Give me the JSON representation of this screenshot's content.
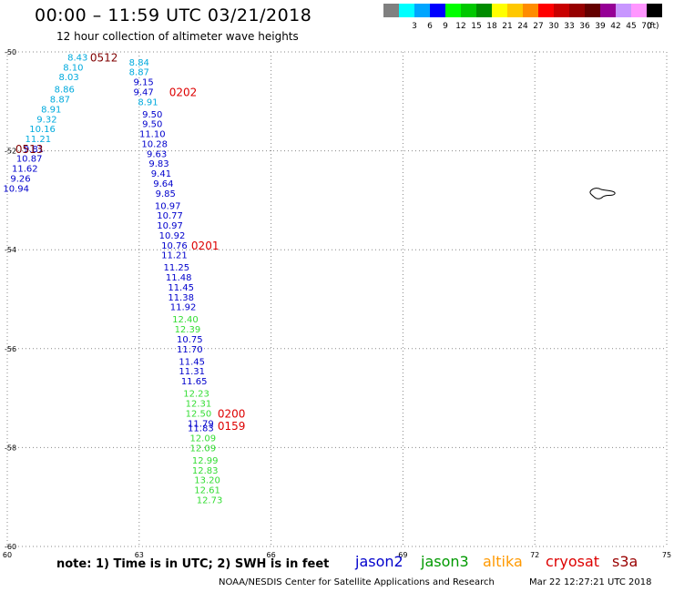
{
  "title": "00:00 – 11:59 UTC 03/21/2018",
  "subtitle": "12 hour collection of altimeter wave heights",
  "scale": {
    "unit_label": "(ft)",
    "items": [
      {
        "label": "",
        "color": "#808080"
      },
      {
        "label": "3",
        "color": "#00ffff"
      },
      {
        "label": "6",
        "color": "#00a5ff"
      },
      {
        "label": "9",
        "color": "#0000ff"
      },
      {
        "label": "12",
        "color": "#00ff00"
      },
      {
        "label": "15",
        "color": "#00c800"
      },
      {
        "label": "18",
        "color": "#008c00"
      },
      {
        "label": "21",
        "color": "#ffff00"
      },
      {
        "label": "24",
        "color": "#ffc800"
      },
      {
        "label": "27",
        "color": "#ff8c00"
      },
      {
        "label": "30",
        "color": "#ff0000"
      },
      {
        "label": "33",
        "color": "#c80000"
      },
      {
        "label": "36",
        "color": "#960000"
      },
      {
        "label": "39",
        "color": "#640000"
      },
      {
        "label": "42",
        "color": "#960096"
      },
      {
        "label": "45",
        "color": "#c896ff"
      },
      {
        "label": "70",
        "color": "#ff96ff"
      },
      {
        "label": "",
        "color": "#000000"
      }
    ]
  },
  "note": "note:  1) Time is in UTC;  2) SWH is in feet",
  "satellites": [
    {
      "name": "jason2",
      "color": "#0000cc"
    },
    {
      "name": "jason3",
      "color": "#009900"
    },
    {
      "name": "altika",
      "color": "#ff9900"
    },
    {
      "name": "cryosat",
      "color": "#dd0000"
    },
    {
      "name": "s3a",
      "color": "#990000"
    }
  ],
  "footer_org": "NOAA/NESDIS Center for Satellite Applications and Research",
  "footer_time": "Mar 22 12:27:21 UTC 2018",
  "chart_data": {
    "type": "scatter",
    "xlim": [
      60,
      75
    ],
    "ylim": [
      -60,
      -50
    ],
    "x_ticks": [
      60,
      63,
      66,
      69,
      72,
      75
    ],
    "y_ticks": [
      -50,
      -52,
      -54,
      -56,
      -58,
      -60
    ],
    "grid": "dotted",
    "colors": {
      "c6": "#00aadd",
      "c9": "#0000cc",
      "c12": "#33dd33",
      "red": "#dd0000",
      "maroon": "#800000"
    },
    "tracks": [
      {
        "c": "c6",
        "points": [
          [
            61.6,
            -50.1,
            "8.43"
          ],
          [
            61.5,
            -50.3,
            "8.10"
          ],
          [
            61.4,
            -50.5,
            "8.03"
          ],
          [
            61.3,
            -50.75,
            "8.86"
          ],
          [
            61.2,
            -50.95,
            "8.87"
          ],
          [
            61.0,
            -51.15,
            "8.91"
          ],
          [
            60.9,
            -51.35,
            "9.32"
          ],
          [
            60.8,
            -51.55,
            "10.16"
          ],
          [
            60.7,
            -51.75,
            "11.21"
          ]
        ]
      },
      {
        "c": "c9",
        "points": [
          [
            60.6,
            -51.95,
            "9.81"
          ]
        ]
      },
      {
        "c": "c9",
        "points": [
          [
            60.5,
            -52.15,
            "10.87"
          ],
          [
            60.4,
            -52.35,
            "11.62"
          ],
          [
            60.3,
            -52.55,
            "9.26"
          ],
          [
            60.2,
            -52.75,
            "10.94"
          ]
        ]
      },
      {
        "c": "c6",
        "points": [
          [
            63.0,
            -50.2,
            "8.84"
          ],
          [
            63.0,
            -50.4,
            "8.87"
          ]
        ]
      },
      {
        "c": "c9",
        "points": [
          [
            63.1,
            -50.6,
            "9.15"
          ],
          [
            63.1,
            -50.8,
            "9.47"
          ]
        ]
      },
      {
        "c": "c6",
        "points": [
          [
            63.2,
            -51.0,
            "8.91"
          ]
        ]
      },
      {
        "c": "c9",
        "points": [
          [
            63.3,
            -51.25,
            "9.50"
          ],
          [
            63.3,
            -51.45,
            "9.50"
          ],
          [
            63.3,
            -51.65,
            "11.10"
          ],
          [
            63.35,
            -51.85,
            "10.28"
          ],
          [
            63.4,
            -52.05,
            "9.63"
          ],
          [
            63.45,
            -52.25,
            "9.83"
          ],
          [
            63.5,
            -52.45,
            "9.41"
          ],
          [
            63.55,
            -52.65,
            "9.64"
          ],
          [
            63.6,
            -52.85,
            "9.85"
          ],
          [
            63.65,
            -53.1,
            "10.97"
          ],
          [
            63.7,
            -53.3,
            "10.77"
          ],
          [
            63.7,
            -53.5,
            "10.97"
          ],
          [
            63.75,
            -53.7,
            "10.92"
          ],
          [
            63.8,
            -53.9,
            "10.76"
          ],
          [
            63.8,
            -54.1,
            "11.21"
          ],
          [
            63.85,
            -54.35,
            "11.25"
          ],
          [
            63.9,
            -54.55,
            "11.48"
          ],
          [
            63.95,
            -54.75,
            "11.45"
          ],
          [
            63.95,
            -54.95,
            "11.38"
          ],
          [
            64.0,
            -55.15,
            "11.92"
          ]
        ]
      },
      {
        "c": "c12",
        "points": [
          [
            64.05,
            -55.4,
            "12.40"
          ],
          [
            64.1,
            -55.6,
            "12.39"
          ]
        ]
      },
      {
        "c": "c9",
        "points": [
          [
            64.15,
            -55.8,
            "10.75"
          ],
          [
            64.15,
            -56.0,
            "11.70"
          ],
          [
            64.2,
            -56.25,
            "11.45"
          ],
          [
            64.2,
            -56.45,
            "11.31"
          ],
          [
            64.25,
            -56.65,
            "11.65"
          ]
        ]
      },
      {
        "c": "c12",
        "points": [
          [
            64.3,
            -56.9,
            "12.23"
          ],
          [
            64.35,
            -57.1,
            "12.31"
          ],
          [
            64.35,
            -57.3,
            "12.50"
          ]
        ]
      },
      {
        "c": "c9",
        "points": [
          [
            64.4,
            -57.5,
            "11.79"
          ],
          [
            64.4,
            -57.6,
            "11.83"
          ]
        ]
      },
      {
        "c": "c12",
        "points": [
          [
            64.45,
            -57.8,
            "12.09"
          ],
          [
            64.45,
            -58.0,
            "12.09"
          ],
          [
            64.5,
            -58.25,
            "12.99"
          ],
          [
            64.5,
            -58.45,
            "12.83"
          ],
          [
            64.55,
            -58.65,
            "13.20"
          ],
          [
            64.55,
            -58.85,
            "12.61"
          ],
          [
            64.6,
            -59.05,
            "12.73"
          ]
        ]
      }
    ],
    "pass_labels": [
      {
        "x": 62.2,
        "y": -50.1,
        "text": "0512",
        "c": "maroon"
      },
      {
        "x": 60.5,
        "y": -51.95,
        "text": "0513",
        "c": "maroon"
      },
      {
        "x": 64.0,
        "y": -50.8,
        "text": "0202",
        "c": "red"
      },
      {
        "x": 64.5,
        "y": -53.9,
        "text": "0201",
        "c": "red"
      },
      {
        "x": 65.1,
        "y": -57.3,
        "text": "0200",
        "c": "red"
      },
      {
        "x": 65.1,
        "y": -57.55,
        "text": "0159",
        "c": "red"
      }
    ]
  }
}
